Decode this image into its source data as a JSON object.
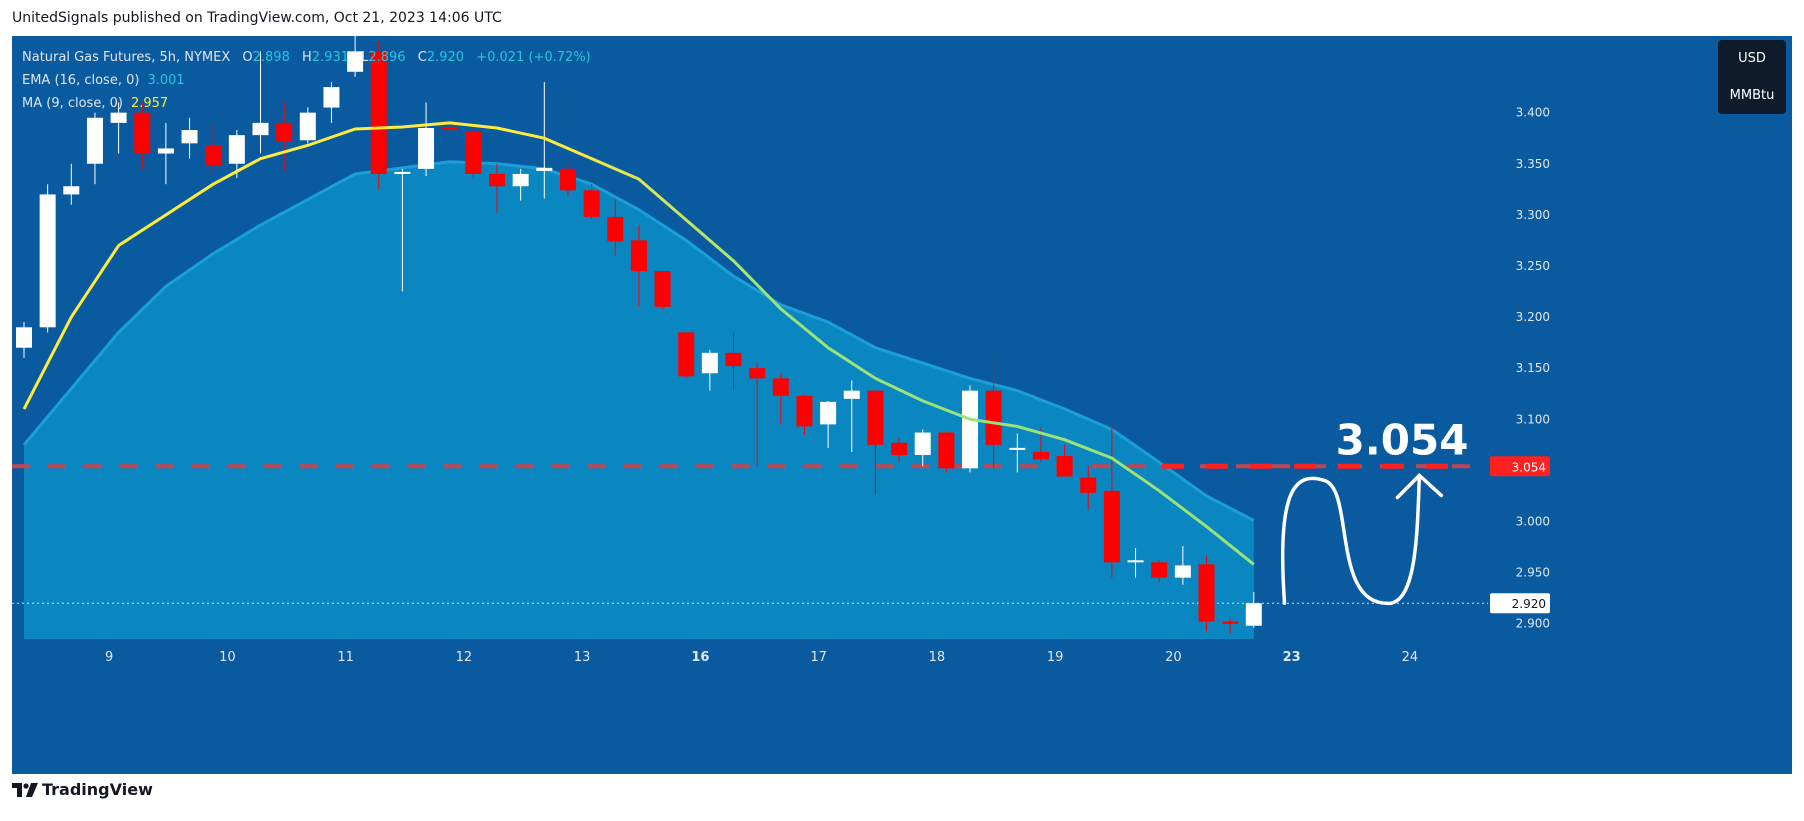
{
  "header": {
    "text": "UnitedSignals published on TradingView.com, Oct 21, 2023 14:06 UTC"
  },
  "legend": {
    "symbol": "Natural Gas Futures, 5h, NYMEX",
    "o_label": "O",
    "o": "2.898",
    "h_label": "H",
    "h": "2.931",
    "l_label": "L",
    "l": "2.896",
    "c_label": "C",
    "c": "2.920",
    "change": "+0.021 (+0.72%)",
    "ema_label": "EMA (16, close, 0)",
    "ema": "3.001",
    "ma_label": "MA (9, close, 0)",
    "ma": "2.957"
  },
  "currency": {
    "line1": "USD",
    "line2": "MMBtu"
  },
  "footer": {
    "brand": "TradingView"
  },
  "colors": {
    "background": "#0a5aa0",
    "band": "#0a86c0",
    "up": "#ffffff",
    "down": "#ff0000",
    "ma": "#ffeb3b",
    "ema": "#9be27a",
    "target": "#ff2020"
  },
  "chart_data": {
    "type": "candlestick",
    "ylim": [
      2.885,
      3.475
    ],
    "y_ticks": [
      "3.400",
      "3.350",
      "3.300",
      "3.250",
      "3.200",
      "3.150",
      "3.100",
      "3.050",
      "3.000",
      "2.950",
      "2.900"
    ],
    "x_ticks": [
      {
        "label": "9",
        "bar": 3.6
      },
      {
        "label": "10",
        "bar": 8.6
      },
      {
        "label": "11",
        "bar": 13.6
      },
      {
        "label": "12",
        "bar": 18.6
      },
      {
        "label": "13",
        "bar": 23.6
      },
      {
        "label": "16",
        "bar": 28.6,
        "bold": true
      },
      {
        "label": "17",
        "bar": 33.6
      },
      {
        "label": "18",
        "bar": 38.6
      },
      {
        "label": "19",
        "bar": 43.6
      },
      {
        "label": "20",
        "bar": 48.6
      },
      {
        "label": "23",
        "bar": 53.6,
        "bold": true
      },
      {
        "label": "24",
        "bar": 58.6
      }
    ],
    "candles": [
      {
        "o": 3.17,
        "h": 3.195,
        "l": 3.16,
        "c": 3.19
      },
      {
        "o": 3.19,
        "h": 3.33,
        "l": 3.185,
        "c": 3.32
      },
      {
        "o": 3.32,
        "h": 3.35,
        "l": 3.31,
        "c": 3.328
      },
      {
        "o": 3.35,
        "h": 3.4,
        "l": 3.33,
        "c": 3.395
      },
      {
        "o": 3.39,
        "h": 3.41,
        "l": 3.36,
        "c": 3.4
      },
      {
        "o": 3.4,
        "h": 3.41,
        "l": 3.345,
        "c": 3.36
      },
      {
        "o": 3.36,
        "h": 3.39,
        "l": 3.33,
        "c": 3.365
      },
      {
        "o": 3.37,
        "h": 3.395,
        "l": 3.355,
        "c": 3.383
      },
      {
        "o": 3.368,
        "h": 3.39,
        "l": 3.34,
        "c": 3.348
      },
      {
        "o": 3.35,
        "h": 3.383,
        "l": 3.336,
        "c": 3.378
      },
      {
        "o": 3.378,
        "h": 3.46,
        "l": 3.36,
        "c": 3.39
      },
      {
        "o": 3.39,
        "h": 3.41,
        "l": 3.342,
        "c": 3.372
      },
      {
        "o": 3.373,
        "h": 3.405,
        "l": 3.37,
        "c": 3.4
      },
      {
        "o": 3.405,
        "h": 3.43,
        "l": 3.39,
        "c": 3.425
      },
      {
        "o": 3.44,
        "h": 3.475,
        "l": 3.435,
        "c": 3.46
      },
      {
        "o": 3.46,
        "h": 3.47,
        "l": 3.325,
        "c": 3.34
      },
      {
        "o": 3.34,
        "h": 3.345,
        "l": 3.225,
        "c": 3.342
      },
      {
        "o": 3.345,
        "h": 3.41,
        "l": 3.338,
        "c": 3.385
      },
      {
        "o": 3.386,
        "h": 3.39,
        "l": 3.38,
        "c": 3.383
      },
      {
        "o": 3.382,
        "h": 3.385,
        "l": 3.335,
        "c": 3.34
      },
      {
        "o": 3.34,
        "h": 3.35,
        "l": 3.302,
        "c": 3.328
      },
      {
        "o": 3.328,
        "h": 3.345,
        "l": 3.314,
        "c": 3.34
      },
      {
        "o": 3.343,
        "h": 3.43,
        "l": 3.316,
        "c": 3.346
      },
      {
        "o": 3.345,
        "h": 3.35,
        "l": 3.318,
        "c": 3.324
      },
      {
        "o": 3.324,
        "h": 3.33,
        "l": 3.296,
        "c": 3.298
      },
      {
        "o": 3.298,
        "h": 3.315,
        "l": 3.26,
        "c": 3.274
      },
      {
        "o": 3.275,
        "h": 3.29,
        "l": 3.21,
        "c": 3.245
      },
      {
        "o": 3.245,
        "h": 3.245,
        "l": 3.208,
        "c": 3.21
      },
      {
        "o": 3.185,
        "h": 3.185,
        "l": 3.14,
        "c": 3.142
      },
      {
        "o": 3.145,
        "h": 3.168,
        "l": 3.128,
        "c": 3.165
      },
      {
        "o": 3.165,
        "h": 3.185,
        "l": 3.128,
        "c": 3.152
      },
      {
        "o": 3.15,
        "h": 3.156,
        "l": 3.054,
        "c": 3.14
      },
      {
        "o": 3.14,
        "h": 3.145,
        "l": 3.095,
        "c": 3.123
      },
      {
        "o": 3.123,
        "h": 3.124,
        "l": 3.085,
        "c": 3.093
      },
      {
        "o": 3.095,
        "h": 3.118,
        "l": 3.072,
        "c": 3.117
      },
      {
        "o": 3.12,
        "h": 3.138,
        "l": 3.068,
        "c": 3.128
      },
      {
        "o": 3.128,
        "h": 3.128,
        "l": 3.026,
        "c": 3.075
      },
      {
        "o": 3.077,
        "h": 3.082,
        "l": 3.058,
        "c": 3.065
      },
      {
        "o": 3.065,
        "h": 3.09,
        "l": 3.054,
        "c": 3.087
      },
      {
        "o": 3.087,
        "h": 3.088,
        "l": 3.048,
        "c": 3.052
      },
      {
        "o": 3.052,
        "h": 3.133,
        "l": 3.048,
        "c": 3.128
      },
      {
        "o": 3.128,
        "h": 3.158,
        "l": 3.052,
        "c": 3.075
      },
      {
        "o": 3.072,
        "h": 3.086,
        "l": 3.048,
        "c": 3.072
      },
      {
        "o": 3.068,
        "h": 3.092,
        "l": 3.058,
        "c": 3.061
      },
      {
        "o": 3.064,
        "h": 3.075,
        "l": 3.045,
        "c": 3.044
      },
      {
        "o": 3.043,
        "h": 3.055,
        "l": 3.012,
        "c": 3.028
      },
      {
        "o": 3.03,
        "h": 3.093,
        "l": 2.945,
        "c": 2.96
      },
      {
        "o": 2.96,
        "h": 2.974,
        "l": 2.945,
        "c": 2.962
      },
      {
        "o": 2.96,
        "h": 2.962,
        "l": 2.94,
        "c": 2.945
      },
      {
        "o": 2.945,
        "h": 2.976,
        "l": 2.938,
        "c": 2.957
      },
      {
        "o": 2.958,
        "h": 2.966,
        "l": 2.893,
        "c": 2.902
      },
      {
        "o": 2.902,
        "h": 2.905,
        "l": 2.89,
        "c": 2.9
      },
      {
        "o": 2.898,
        "h": 2.931,
        "l": 2.896,
        "c": 2.92
      }
    ],
    "ma_line": [
      [
        0,
        3.11
      ],
      [
        2,
        3.2
      ],
      [
        4,
        3.27
      ],
      [
        6,
        3.3
      ],
      [
        8,
        3.33
      ],
      [
        10,
        3.355
      ],
      [
        12,
        3.368
      ],
      [
        14,
        3.384
      ],
      [
        16,
        3.386
      ],
      [
        18,
        3.39
      ],
      [
        20,
        3.385
      ],
      [
        22,
        3.375
      ],
      [
        24,
        3.355
      ],
      [
        26,
        3.335
      ],
      [
        28,
        3.295
      ],
      [
        30,
        3.255
      ],
      [
        32,
        3.208
      ],
      [
        34,
        3.17
      ],
      [
        36,
        3.14
      ],
      [
        38,
        3.118
      ],
      [
        40,
        3.1
      ],
      [
        42,
        3.093
      ],
      [
        44,
        3.08
      ],
      [
        46,
        3.062
      ],
      [
        48,
        3.03
      ],
      [
        50,
        2.995
      ],
      [
        52,
        2.958
      ]
    ],
    "ema_line": [
      [
        0,
        3.075
      ],
      [
        2,
        3.13
      ],
      [
        4,
        3.185
      ],
      [
        6,
        3.23
      ],
      [
        8,
        3.262
      ],
      [
        10,
        3.29
      ],
      [
        12,
        3.315
      ],
      [
        14,
        3.34
      ],
      [
        16,
        3.346
      ],
      [
        18,
        3.352
      ],
      [
        20,
        3.35
      ],
      [
        22,
        3.345
      ],
      [
        24,
        3.33
      ],
      [
        26,
        3.305
      ],
      [
        28,
        3.275
      ],
      [
        30,
        3.24
      ],
      [
        32,
        3.212
      ],
      [
        34,
        3.195
      ],
      [
        36,
        3.17
      ],
      [
        38,
        3.155
      ],
      [
        40,
        3.14
      ],
      [
        42,
        3.128
      ],
      [
        44,
        3.11
      ],
      [
        46,
        3.09
      ],
      [
        48,
        3.058
      ],
      [
        50,
        3.025
      ],
      [
        52,
        3.001
      ]
    ],
    "target_level": 3.054,
    "target_label": "3.054",
    "last_price": 2.92,
    "last_label": "2.920",
    "projection": [
      [
        53.3,
        2.92
      ],
      [
        55,
        3.04
      ],
      [
        57.8,
        2.92
      ],
      [
        59,
        3.045
      ]
    ]
  }
}
